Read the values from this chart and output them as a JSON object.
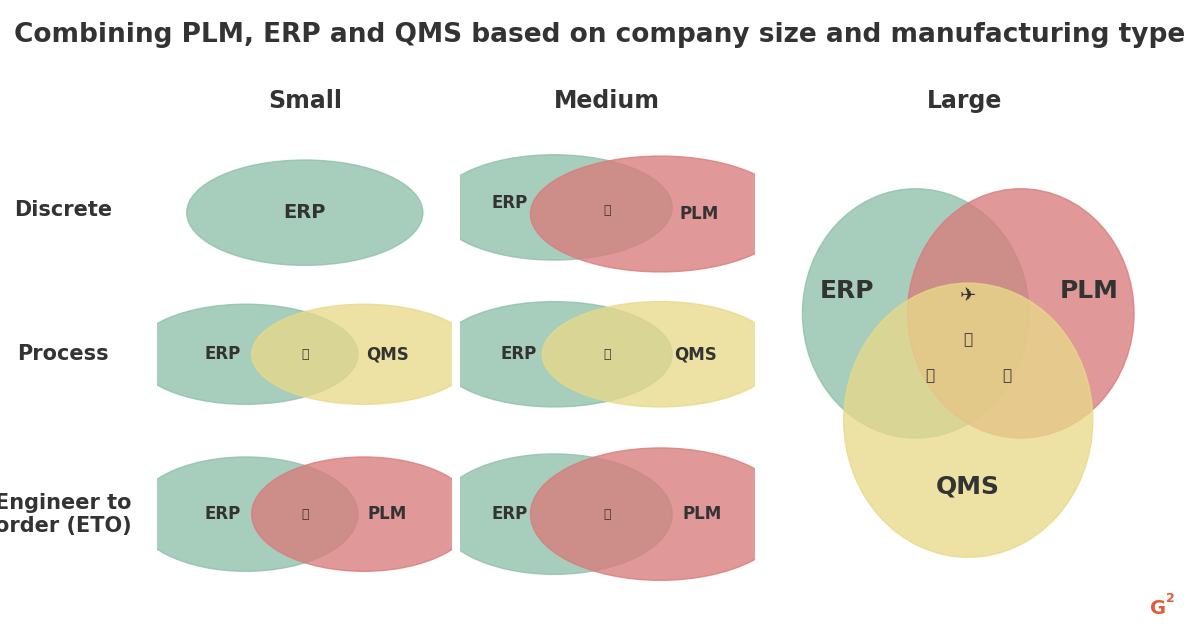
{
  "title": "Combining PLM, ERP and QMS based on company size and manufacturing type",
  "col_headers": [
    "Small",
    "Medium",
    "Large"
  ],
  "row_headers": [
    "Discrete",
    "Process",
    "Engineer to\norder (ETO)"
  ],
  "bg_color": "#ffffff",
  "cell_bg_color": "#e5e5e5",
  "erp_color": "#8fbfaa",
  "plm_color": "#d97b7b",
  "qms_color": "#e8d98a",
  "alpha": 0.78,
  "title_fontsize": 19,
  "header_fontsize": 17,
  "row_header_fontsize": 15,
  "label_fontsize_sm": 13,
  "label_fontsize_lg": 18,
  "text_color": "#333333"
}
